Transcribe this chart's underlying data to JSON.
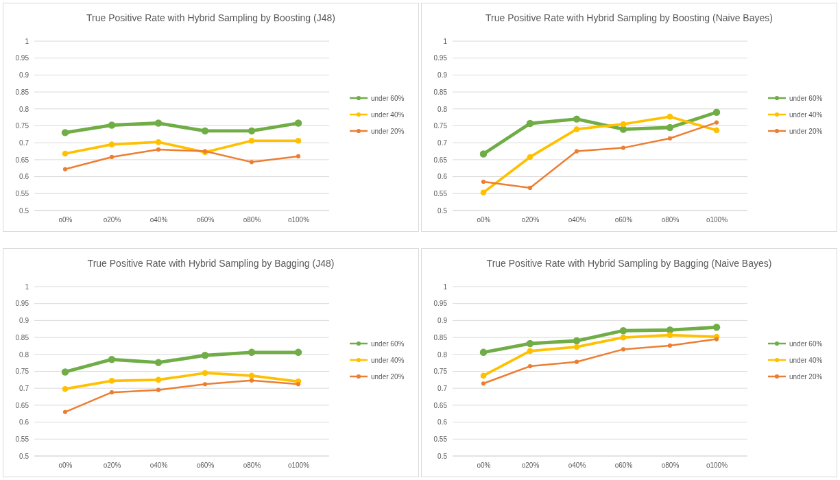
{
  "chart_data": [
    {
      "type": "line",
      "title": "True Positive Rate with Hybrid Sampling by Boosting (J48)",
      "categories": [
        "o0%",
        "o20%",
        "o40%",
        "o60%",
        "o80%",
        "o100%"
      ],
      "ylim": [
        0.5,
        1
      ],
      "yticks": [
        0.5,
        0.55,
        0.6,
        0.65,
        0.7,
        0.75,
        0.8,
        0.85,
        0.9,
        0.95,
        1
      ],
      "grid": "y",
      "legend": "right",
      "marker": "circle",
      "series": [
        {
          "name": "under 60%",
          "color": "#70ad47",
          "values": [
            0.73,
            0.752,
            0.758,
            0.735,
            0.735,
            0.758
          ]
        },
        {
          "name": "under 40%",
          "color": "#ffc000",
          "values": [
            0.668,
            0.695,
            0.702,
            0.672,
            0.706,
            0.706
          ]
        },
        {
          "name": "under 20%",
          "color": "#ed7d31",
          "values": [
            0.622,
            0.658,
            0.68,
            0.675,
            0.643,
            0.66
          ]
        }
      ]
    },
    {
      "type": "line",
      "title": "True Positive Rate with Hybrid Sampling by Boosting (Naive Bayes)",
      "categories": [
        "o0%",
        "o20%",
        "o40%",
        "o60%",
        "o80%",
        "o100%"
      ],
      "ylim": [
        0.5,
        1
      ],
      "yticks": [
        0.5,
        0.55,
        0.6,
        0.65,
        0.7,
        0.75,
        0.8,
        0.85,
        0.9,
        0.95,
        1
      ],
      "grid": "y",
      "legend": "right",
      "marker": "circle",
      "series": [
        {
          "name": "under 60%",
          "color": "#70ad47",
          "values": [
            0.667,
            0.757,
            0.77,
            0.74,
            0.745,
            0.79
          ]
        },
        {
          "name": "under 40%",
          "color": "#ffc000",
          "values": [
            0.553,
            0.658,
            0.74,
            0.755,
            0.777,
            0.737
          ]
        },
        {
          "name": "under 20%",
          "color": "#ed7d31",
          "values": [
            0.585,
            0.567,
            0.675,
            0.685,
            0.713,
            0.76
          ]
        }
      ]
    },
    {
      "type": "line",
      "title": "True Positive Rate with Hybrid Sampling by Bagging (J48)",
      "categories": [
        "o0%",
        "o20%",
        "o40%",
        "o60%",
        "o80%",
        "o100%"
      ],
      "ylim": [
        0.5,
        1
      ],
      "yticks": [
        0.5,
        0.55,
        0.6,
        0.65,
        0.7,
        0.75,
        0.8,
        0.85,
        0.9,
        0.95,
        1
      ],
      "grid": "y",
      "legend": "right",
      "marker": "circle",
      "series": [
        {
          "name": "under 60%",
          "color": "#70ad47",
          "values": [
            0.748,
            0.785,
            0.776,
            0.797,
            0.806,
            0.806
          ]
        },
        {
          "name": "under 40%",
          "color": "#ffc000",
          "values": [
            0.698,
            0.722,
            0.725,
            0.745,
            0.737,
            0.72
          ]
        },
        {
          "name": "under 20%",
          "color": "#ed7d31",
          "values": [
            0.63,
            0.688,
            0.695,
            0.712,
            0.723,
            0.712
          ]
        }
      ]
    },
    {
      "type": "line",
      "title": "True Positive Rate with Hybrid Sampling by Bagging (Naive Bayes)",
      "categories": [
        "o0%",
        "o20%",
        "o40%",
        "o60%",
        "o80%",
        "o100%"
      ],
      "ylim": [
        0.5,
        1
      ],
      "yticks": [
        0.5,
        0.55,
        0.6,
        0.65,
        0.7,
        0.75,
        0.8,
        0.85,
        0.9,
        0.95,
        1
      ],
      "grid": "y",
      "legend": "right",
      "marker": "circle",
      "series": [
        {
          "name": "under 60%",
          "color": "#70ad47",
          "values": [
            0.806,
            0.832,
            0.84,
            0.87,
            0.872,
            0.88
          ]
        },
        {
          "name": "under 40%",
          "color": "#ffc000",
          "values": [
            0.737,
            0.81,
            0.822,
            0.85,
            0.857,
            0.852
          ]
        },
        {
          "name": "under 20%",
          "color": "#ed7d31",
          "values": [
            0.714,
            0.765,
            0.778,
            0.815,
            0.826,
            0.845
          ]
        }
      ]
    }
  ]
}
